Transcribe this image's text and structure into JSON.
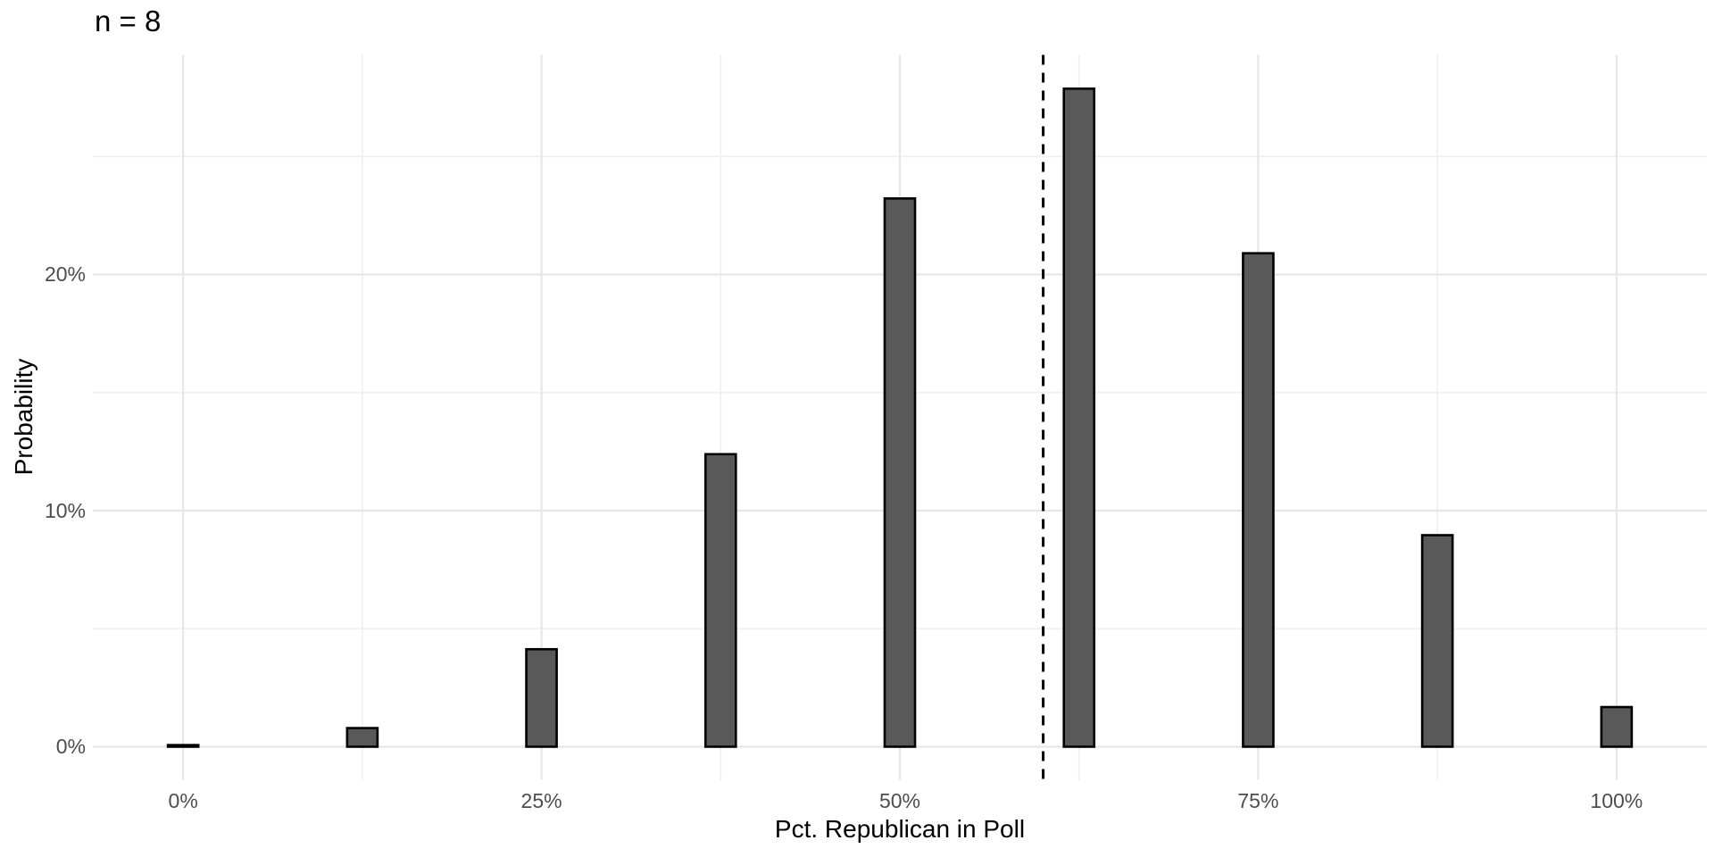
{
  "chart_data": {
    "type": "bar",
    "title": "n = 8",
    "xlabel": "Pct. Republican in Poll",
    "ylabel": "Probability",
    "x": [
      0,
      12.5,
      25,
      37.5,
      50,
      62.5,
      75,
      87.5,
      100
    ],
    "values": [
      0.07,
      0.79,
      4.13,
      12.39,
      23.22,
      27.87,
      20.9,
      8.96,
      1.68
    ],
    "x_tick_labels": [
      "0%",
      "25%",
      "50%",
      "75%",
      "100%"
    ],
    "x_tick_values": [
      0,
      25,
      50,
      75,
      100
    ],
    "x_minor_gridlines": [
      12.5,
      37.5,
      62.5,
      87.5
    ],
    "y_tick_labels": [
      "0%",
      "10%",
      "20%"
    ],
    "y_tick_values": [
      0,
      10,
      20
    ],
    "y_minor_gridlines": [
      5,
      15,
      25
    ],
    "xlim": [
      -6.3,
      106.3
    ],
    "ylim": [
      -1.4,
      29.3
    ],
    "bar_width": 2.12,
    "vline_x": 60,
    "vline_style": "dashed",
    "grid": "on",
    "legend": "none",
    "colors": {
      "bar_fill": "#595959",
      "bar_stroke": "#000000",
      "grid_major": "#E6E6E6",
      "grid_minor": "#F0F0F0",
      "tick_label": "#4D4D4D",
      "axis_title": "#000000",
      "title": "#000000",
      "vline": "#000000",
      "background": "#FFFFFF"
    }
  }
}
